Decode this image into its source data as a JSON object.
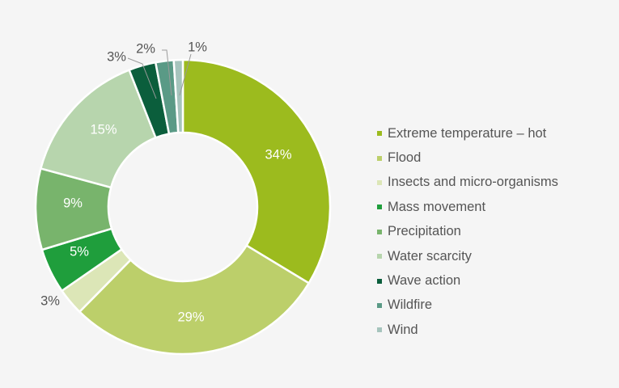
{
  "chart_data": {
    "type": "pie",
    "style": "donut",
    "title": "",
    "categories": [
      "Extreme temperature – hot",
      "Flood",
      "Insects and micro-organisms",
      "Mass movement",
      "Precipitation",
      "Water scarcity",
      "Wave action",
      "Wildfire",
      "Wind"
    ],
    "values": [
      34,
      29,
      3,
      5,
      9,
      15,
      3,
      2,
      1
    ],
    "labels": [
      "34%",
      "29%",
      "3%",
      "5%",
      "9%",
      "15%",
      "3%",
      "2%",
      "1%"
    ],
    "colors": [
      "#9cbb1e",
      "#bccf6a",
      "#dce6b7",
      "#1f9e3c",
      "#78b46c",
      "#b7d5ad",
      "#0b5e3c",
      "#5a9a86",
      "#a6c4bd"
    ],
    "label_colors": [
      "#ffffff",
      "#ffffff",
      "#555555",
      "#ffffff",
      "#ffffff",
      "#ffffff",
      "#555555",
      "#555555",
      "#555555"
    ],
    "legend_position": "right"
  }
}
